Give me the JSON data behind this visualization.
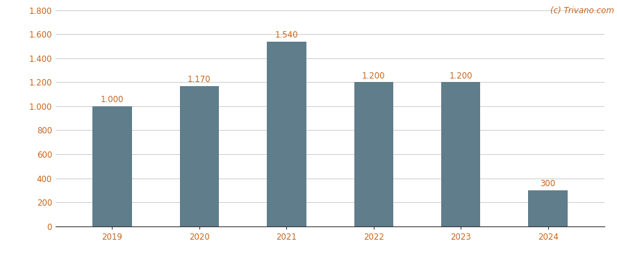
{
  "categories": [
    "2019",
    "2020",
    "2021",
    "2022",
    "2023",
    "2024"
  ],
  "values": [
    1000,
    1170,
    1540,
    1200,
    1200,
    300
  ],
  "bar_labels": [
    "1.000",
    "1.170",
    "1.540",
    "1.200",
    "1.200",
    "300"
  ],
  "bar_color": "#607d8b",
  "background_color": "#ffffff",
  "ylim": [
    0,
    1800
  ],
  "yticks": [
    0,
    200,
    400,
    600,
    800,
    1000,
    1200,
    1400,
    1600,
    1800
  ],
  "ytick_labels": [
    "0",
    "200",
    "400",
    "600",
    "800",
    "1.000",
    "1.200",
    "1.400",
    "1.600",
    "1.800"
  ],
  "grid_color": "#cccccc",
  "label_color": "#c8651b",
  "tick_color": "#c8651b",
  "watermark": "(c) Trivano.com",
  "watermark_color": "#c8651b",
  "label_fontsize": 8.5,
  "tick_fontsize": 8.5,
  "watermark_fontsize": 8.5,
  "bar_width": 0.45
}
